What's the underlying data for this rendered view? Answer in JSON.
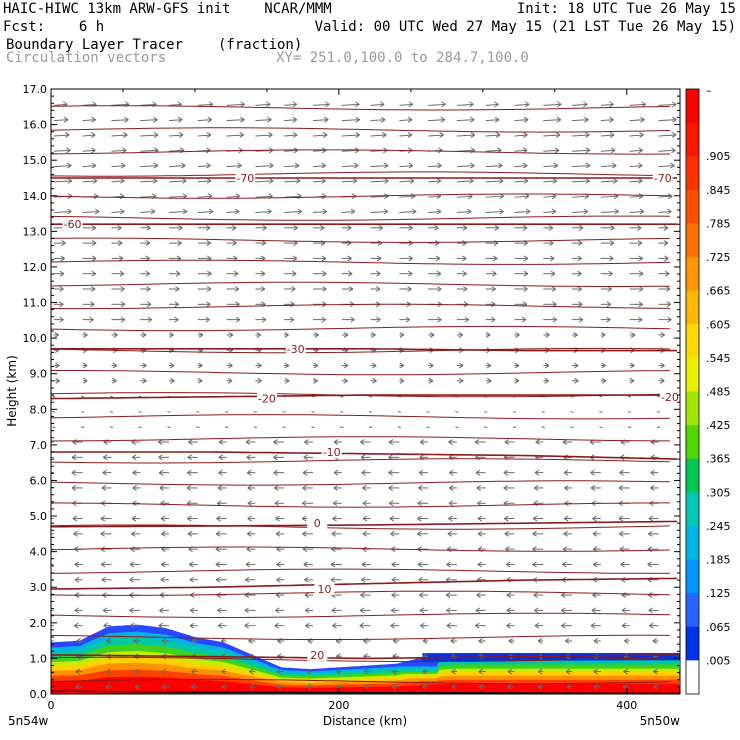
{
  "header": {
    "line1_left": "HAIC-HIWC 13km ARW-GFS init    NCAR/MMM",
    "line1_right": "Init: 18 UTC Tue 26 May 15",
    "line2_left": "Fcst:    6 h",
    "line2_right": "Valid: 00 UTC Wed 27 May 15 (21 LST Tue 26 May 15)",
    "line3_left": "Boundary Layer Tracer",
    "line3_units": "(fraction)",
    "line4_left": "Circulation vectors",
    "line4_right": "XY= 251.0,100.0 to 284.7,100.0"
  },
  "chart_data": {
    "type": "cross-section",
    "xlabel": "Distance (km)",
    "ylabel": "Height (km)",
    "xlim": [
      0,
      437
    ],
    "ylim": [
      0,
      17
    ],
    "x_ticks": [
      0,
      200,
      400
    ],
    "y_ticks": [
      "0.0",
      "1.0",
      "2.0",
      "3.0",
      "4.0",
      "5.0",
      "6.0",
      "7.0",
      "8.0",
      "9.0",
      "10.0",
      "11.0",
      "12.0",
      "13.0",
      "14.0",
      "15.0",
      "16.0",
      "17.0"
    ],
    "x_endpoint_left": "5n54w",
    "x_endpoint_right": "5n50w",
    "colorbar": {
      "labels": [
        "–",
        ".905",
        ".845",
        ".785",
        ".725",
        ".665",
        ".605",
        ".545",
        ".485",
        ".425",
        ".365",
        ".305",
        ".245",
        ".185",
        ".125",
        ".065",
        ".005"
      ],
      "colors": [
        "#ff0000",
        "#ff1500",
        "#ff3200",
        "#ff5000",
        "#ff7000",
        "#ff9500",
        "#ffb800",
        "#ffd800",
        "#e8f000",
        "#a0e600",
        "#50d800",
        "#00c850",
        "#00c8b4",
        "#00b4e6",
        "#0096ff",
        "#2864ff",
        "#0032e6",
        "#ffffff"
      ]
    },
    "temperature_contours": [
      {
        "label": "-70",
        "heights": [
          14.5,
          14.5,
          14.5,
          14.5,
          14.5
        ]
      },
      {
        "label": "-60",
        "heights": [
          13.2,
          13.2,
          13.2,
          13.2,
          13.2
        ]
      },
      {
        "label": "-30",
        "heights": [
          9.7,
          9.7,
          9.7,
          9.65,
          9.65
        ]
      },
      {
        "label": "-20",
        "heights": [
          8.3,
          8.35,
          8.4,
          8.4,
          8.4
        ]
      },
      {
        "label": "-10",
        "heights": [
          6.8,
          6.8,
          6.75,
          6.7,
          6.6
        ]
      },
      {
        "label": "0",
        "heights": [
          4.7,
          4.72,
          4.75,
          4.8,
          4.85
        ]
      },
      {
        "label": "10",
        "heights": [
          2.95,
          3.0,
          3.1,
          3.2,
          3.25
        ]
      },
      {
        "label": "20",
        "heights": [
          1.1,
          1.05,
          1.0,
          1.05,
          1.1
        ]
      }
    ],
    "contour_label_positions": [
      {
        "label": "-70",
        "x": 135,
        "y": 14.5
      },
      {
        "label": "-70",
        "x": 425,
        "y": 14.5
      },
      {
        "label": "-60",
        "x": 15,
        "y": 13.2
      },
      {
        "label": "-30",
        "x": 170,
        "y": 9.7
      },
      {
        "label": "-20",
        "x": 150,
        "y": 8.3
      },
      {
        "label": "-20",
        "x": 430,
        "y": 8.35
      },
      {
        "label": "-10",
        "x": 195,
        "y": 6.8
      },
      {
        "label": "0",
        "x": 185,
        "y": 4.8
      },
      {
        "label": "10",
        "x": 190,
        "y": 2.95
      },
      {
        "label": "20",
        "x": 185,
        "y": 1.1
      }
    ],
    "tracer_top_heights": {
      "x": [
        0,
        20,
        40,
        60,
        80,
        100,
        120,
        140,
        160,
        180,
        200,
        220,
        240,
        260,
        280,
        300,
        320,
        340,
        360,
        380,
        400,
        420,
        437
      ],
      "top": [
        1.45,
        1.5,
        1.9,
        1.95,
        1.85,
        1.6,
        1.45,
        1.1,
        0.75,
        0.7,
        0.75,
        0.8,
        0.85,
        1.05,
        1.15,
        1.15,
        1.15,
        1.15,
        1.15,
        1.15,
        1.15,
        1.15,
        1.15
      ]
    },
    "wind_layers": [
      {
        "z_min": 13.5,
        "z_max": 17.0,
        "u": 1.0
      },
      {
        "z_min": 10.5,
        "z_max": 13.5,
        "u": 0.75
      },
      {
        "z_min": 8.5,
        "z_max": 10.5,
        "u": 0.35
      },
      {
        "z_min": 7.5,
        "z_max": 8.5,
        "u": -0.1
      },
      {
        "z_min": 1.5,
        "z_max": 7.5,
        "u": -0.6
      },
      {
        "z_min": 0.0,
        "z_max": 1.5,
        "u": -0.4
      }
    ]
  }
}
